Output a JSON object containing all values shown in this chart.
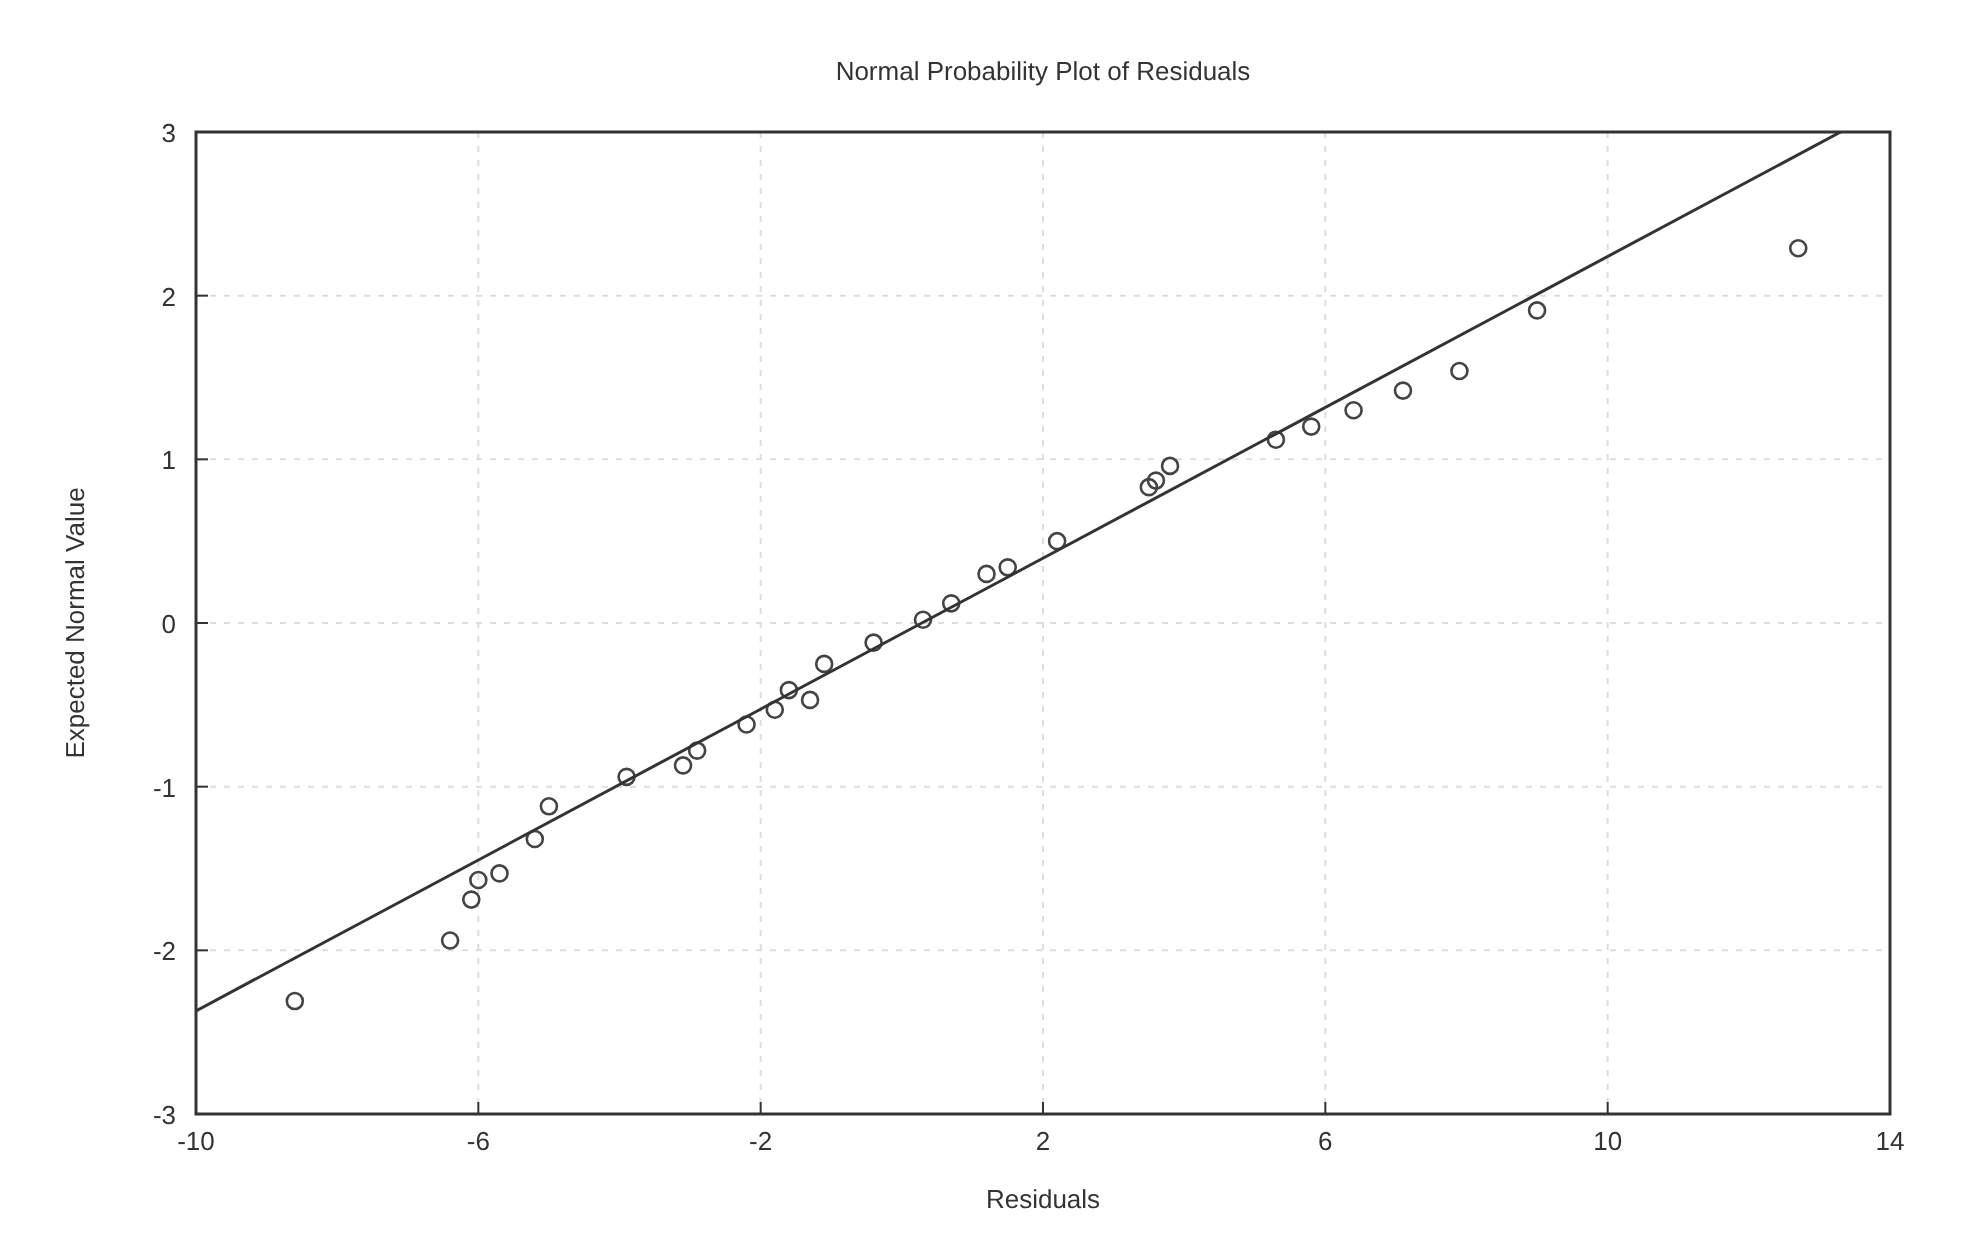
{
  "chart_data": {
    "type": "scatter",
    "title": "Normal Probability Plot of Residuals",
    "xlabel": "Residuals",
    "ylabel": "Expected Normal Value",
    "xlim": [
      -10,
      14
    ],
    "ylim": [
      -3,
      3
    ],
    "xticks": [
      -10,
      -6,
      -2,
      2,
      6,
      10,
      14
    ],
    "yticks": [
      -3,
      -2,
      -1,
      0,
      1,
      2,
      3
    ],
    "grid": true,
    "marker": "circle",
    "series": [
      {
        "color": "#444444",
        "x": [
          -8.6,
          -6.4,
          -6.1,
          -6.0,
          -5.7,
          -5.2,
          -5.0,
          -3.9,
          -3.1,
          -2.9,
          -2.2,
          -1.8,
          -1.6,
          -1.3,
          -1.1,
          -0.4,
          0.3,
          0.7,
          1.2,
          1.5,
          2.2,
          3.5,
          3.6,
          3.8,
          5.3,
          5.8,
          6.4,
          7.1,
          7.9,
          9.0,
          12.7
        ],
        "values": [
          -2.31,
          -1.94,
          -1.69,
          -1.57,
          -1.53,
          -1.32,
          -1.12,
          -0.94,
          -0.87,
          -0.78,
          -0.62,
          -0.53,
          -0.41,
          -0.47,
          -0.25,
          -0.12,
          0.02,
          0.12,
          0.3,
          0.34,
          0.5,
          0.83,
          0.87,
          0.96,
          1.12,
          1.2,
          1.3,
          1.42,
          1.54,
          1.91,
          2.29
        ]
      },
      {
        "type": "line",
        "color": "#333333",
        "line_style": "solid",
        "marker": "none",
        "x": [
          -10,
          13.3
        ],
        "values": [
          -2.37,
          3.0
        ]
      }
    ]
  }
}
